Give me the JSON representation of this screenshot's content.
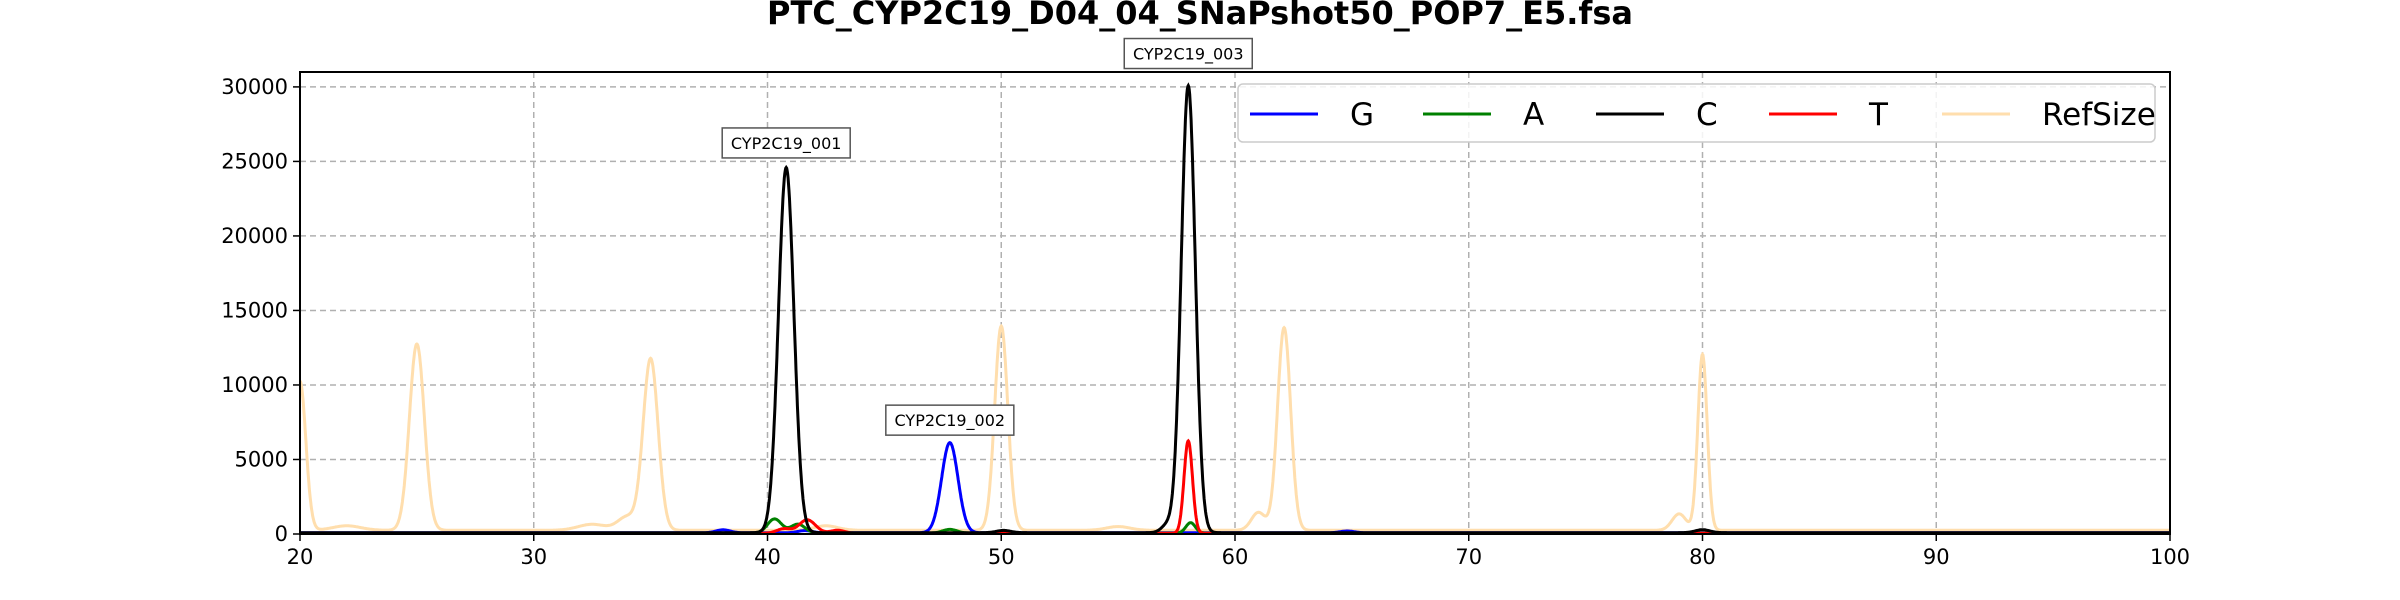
{
  "chart_data": {
    "type": "line",
    "title": "PTC_CYP2C19_D04_04_SNaPshot50_POP7_E5.fsa",
    "xlabel": "",
    "ylabel": "",
    "xlim": [
      20,
      100
    ],
    "ylim": [
      0,
      31000
    ],
    "x_ticks": [
      20,
      30,
      40,
      50,
      60,
      70,
      80,
      90,
      100
    ],
    "y_ticks": [
      0,
      5000,
      10000,
      15000,
      20000,
      25000,
      30000
    ],
    "grid": true,
    "legend_position": "top-right",
    "series": [
      {
        "name": "G",
        "color": "#0000ff",
        "baseline": 80,
        "peaks": [
          {
            "x": 47.8,
            "height": 6050,
            "width": 0.35
          },
          {
            "x": 38.1,
            "height": 200,
            "width": 0.3
          },
          {
            "x": 41.6,
            "height": 150,
            "width": 0.3
          },
          {
            "x": 64.8,
            "height": 120,
            "width": 0.3
          }
        ]
      },
      {
        "name": "A",
        "color": "#008000",
        "baseline": 60,
        "peaks": [
          {
            "x": 40.3,
            "height": 950,
            "width": 0.3
          },
          {
            "x": 41.3,
            "height": 600,
            "width": 0.3
          },
          {
            "x": 47.8,
            "height": 250,
            "width": 0.3
          },
          {
            "x": 58.1,
            "height": 700,
            "width": 0.2
          }
        ]
      },
      {
        "name": "C",
        "color": "#000000",
        "baseline": 90,
        "peaks": [
          {
            "x": 40.8,
            "height": 24500,
            "width": 0.33
          },
          {
            "x": 58.0,
            "height": 30000,
            "width": 0.3
          },
          {
            "x": 57.1,
            "height": 500,
            "width": 0.25
          },
          {
            "x": 80.0,
            "height": 200,
            "width": 0.3
          },
          {
            "x": 50.1,
            "height": 150,
            "width": 0.3
          }
        ]
      },
      {
        "name": "T",
        "color": "#ff0000",
        "baseline": 50,
        "peaks": [
          {
            "x": 41.7,
            "height": 900,
            "width": 0.35
          },
          {
            "x": 40.7,
            "height": 300,
            "width": 0.3
          },
          {
            "x": 58.0,
            "height": 6200,
            "width": 0.18
          },
          {
            "x": 43.0,
            "height": 200,
            "width": 0.3
          }
        ]
      },
      {
        "name": "RefSize",
        "color": "#ffdead",
        "baseline": 250,
        "peaks": [
          {
            "x": 20.0,
            "height": 10000,
            "width": 0.25
          },
          {
            "x": 25.0,
            "height": 12500,
            "width": 0.32
          },
          {
            "x": 35.0,
            "height": 11500,
            "width": 0.32
          },
          {
            "x": 50.0,
            "height": 13700,
            "width": 0.28
          },
          {
            "x": 62.1,
            "height": 13600,
            "width": 0.28
          },
          {
            "x": 80.0,
            "height": 11800,
            "width": 0.2
          },
          {
            "x": 61.0,
            "height": 1200,
            "width": 0.3
          },
          {
            "x": 79.0,
            "height": 1100,
            "width": 0.3
          },
          {
            "x": 34.0,
            "height": 900,
            "width": 0.4
          },
          {
            "x": 22.0,
            "height": 300,
            "width": 0.6
          },
          {
            "x": 32.5,
            "height": 400,
            "width": 0.6
          },
          {
            "x": 55.0,
            "height": 250,
            "width": 0.5
          },
          {
            "x": 42.5,
            "height": 300,
            "width": 0.5
          }
        ]
      }
    ],
    "annotations": [
      {
        "text": "CYP2C19_001",
        "x": 40.8,
        "y": 25300
      },
      {
        "text": "CYP2C19_002",
        "x": 47.8,
        "y": 6700
      },
      {
        "text": "CYP2C19_003",
        "x": 58.0,
        "y": 31300
      }
    ]
  }
}
